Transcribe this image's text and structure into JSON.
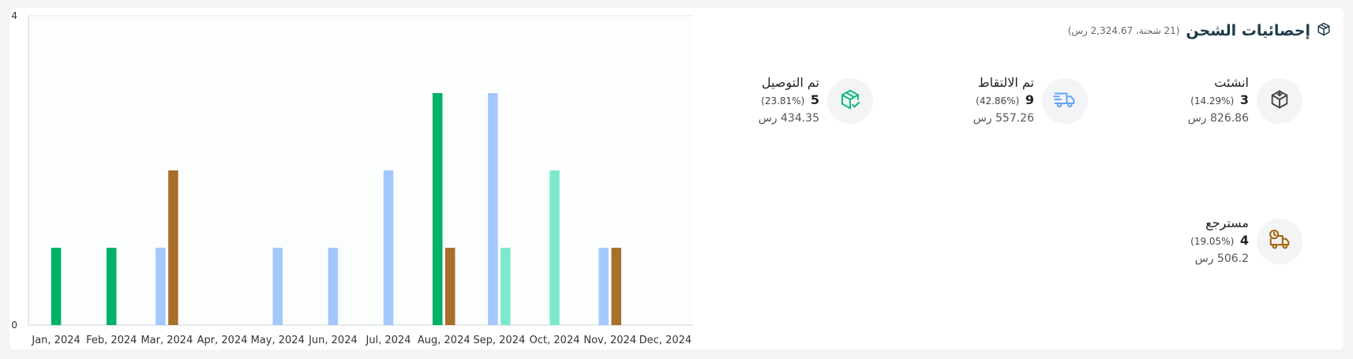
{
  "header": {
    "title": "إحصائيات الشحن",
    "summary": "(21 شحنة، 2,324.67 رس)",
    "icon": "package-icon"
  },
  "stats": [
    {
      "label": "انشئت",
      "count": "3",
      "percent": "(14.29%)",
      "amount": "826.86 رس",
      "icon": "package-box-icon",
      "color": "#444444"
    },
    {
      "label": "تم الالتقاط",
      "count": "9",
      "percent": "(42.86%)",
      "amount": "557.26 رس",
      "icon": "delivery-truck-icon",
      "color": "#60a5fa"
    },
    {
      "label": "تم التوصيل",
      "count": "5",
      "percent": "(23.81%)",
      "amount": "434.35 رس",
      "icon": "package-check-icon",
      "color": "#10b981"
    },
    {
      "label": "مسترجع",
      "count": "4",
      "percent": "(19.05%)",
      "amount": "506.2 رس",
      "icon": "return-truck-icon",
      "color": "#a16207"
    }
  ],
  "chart_data": {
    "type": "bar",
    "categories": [
      "Jan, 2024",
      "Feb, 2024",
      "Mar, 2024",
      "Apr, 2024",
      "May, 2024",
      "Jun, 2024",
      "Jul, 2024",
      "Aug, 2024",
      "Sep, 2024",
      "Oct, 2024",
      "Nov, 2024",
      "Dec, 2024"
    ],
    "series": [
      {
        "color": "#00b16a",
        "values": [
          1,
          1,
          0,
          0,
          0,
          0,
          0,
          3,
          0,
          0,
          0,
          0
        ]
      },
      {
        "color": "#a4c8fb",
        "values": [
          0,
          0,
          1,
          0,
          1,
          1,
          2,
          0,
          3,
          0,
          1,
          0
        ]
      },
      {
        "color": "#a86f2a",
        "values": [
          0,
          0,
          2,
          0,
          0,
          0,
          0,
          1,
          0,
          0,
          1,
          0
        ]
      },
      {
        "color": "#7ee8cc",
        "values": [
          0,
          0,
          0,
          0,
          0,
          0,
          0,
          0,
          1,
          2,
          0,
          0
        ]
      }
    ],
    "ylim": [
      0,
      4
    ],
    "yticks": [
      "0",
      "4"
    ],
    "grid": false
  }
}
